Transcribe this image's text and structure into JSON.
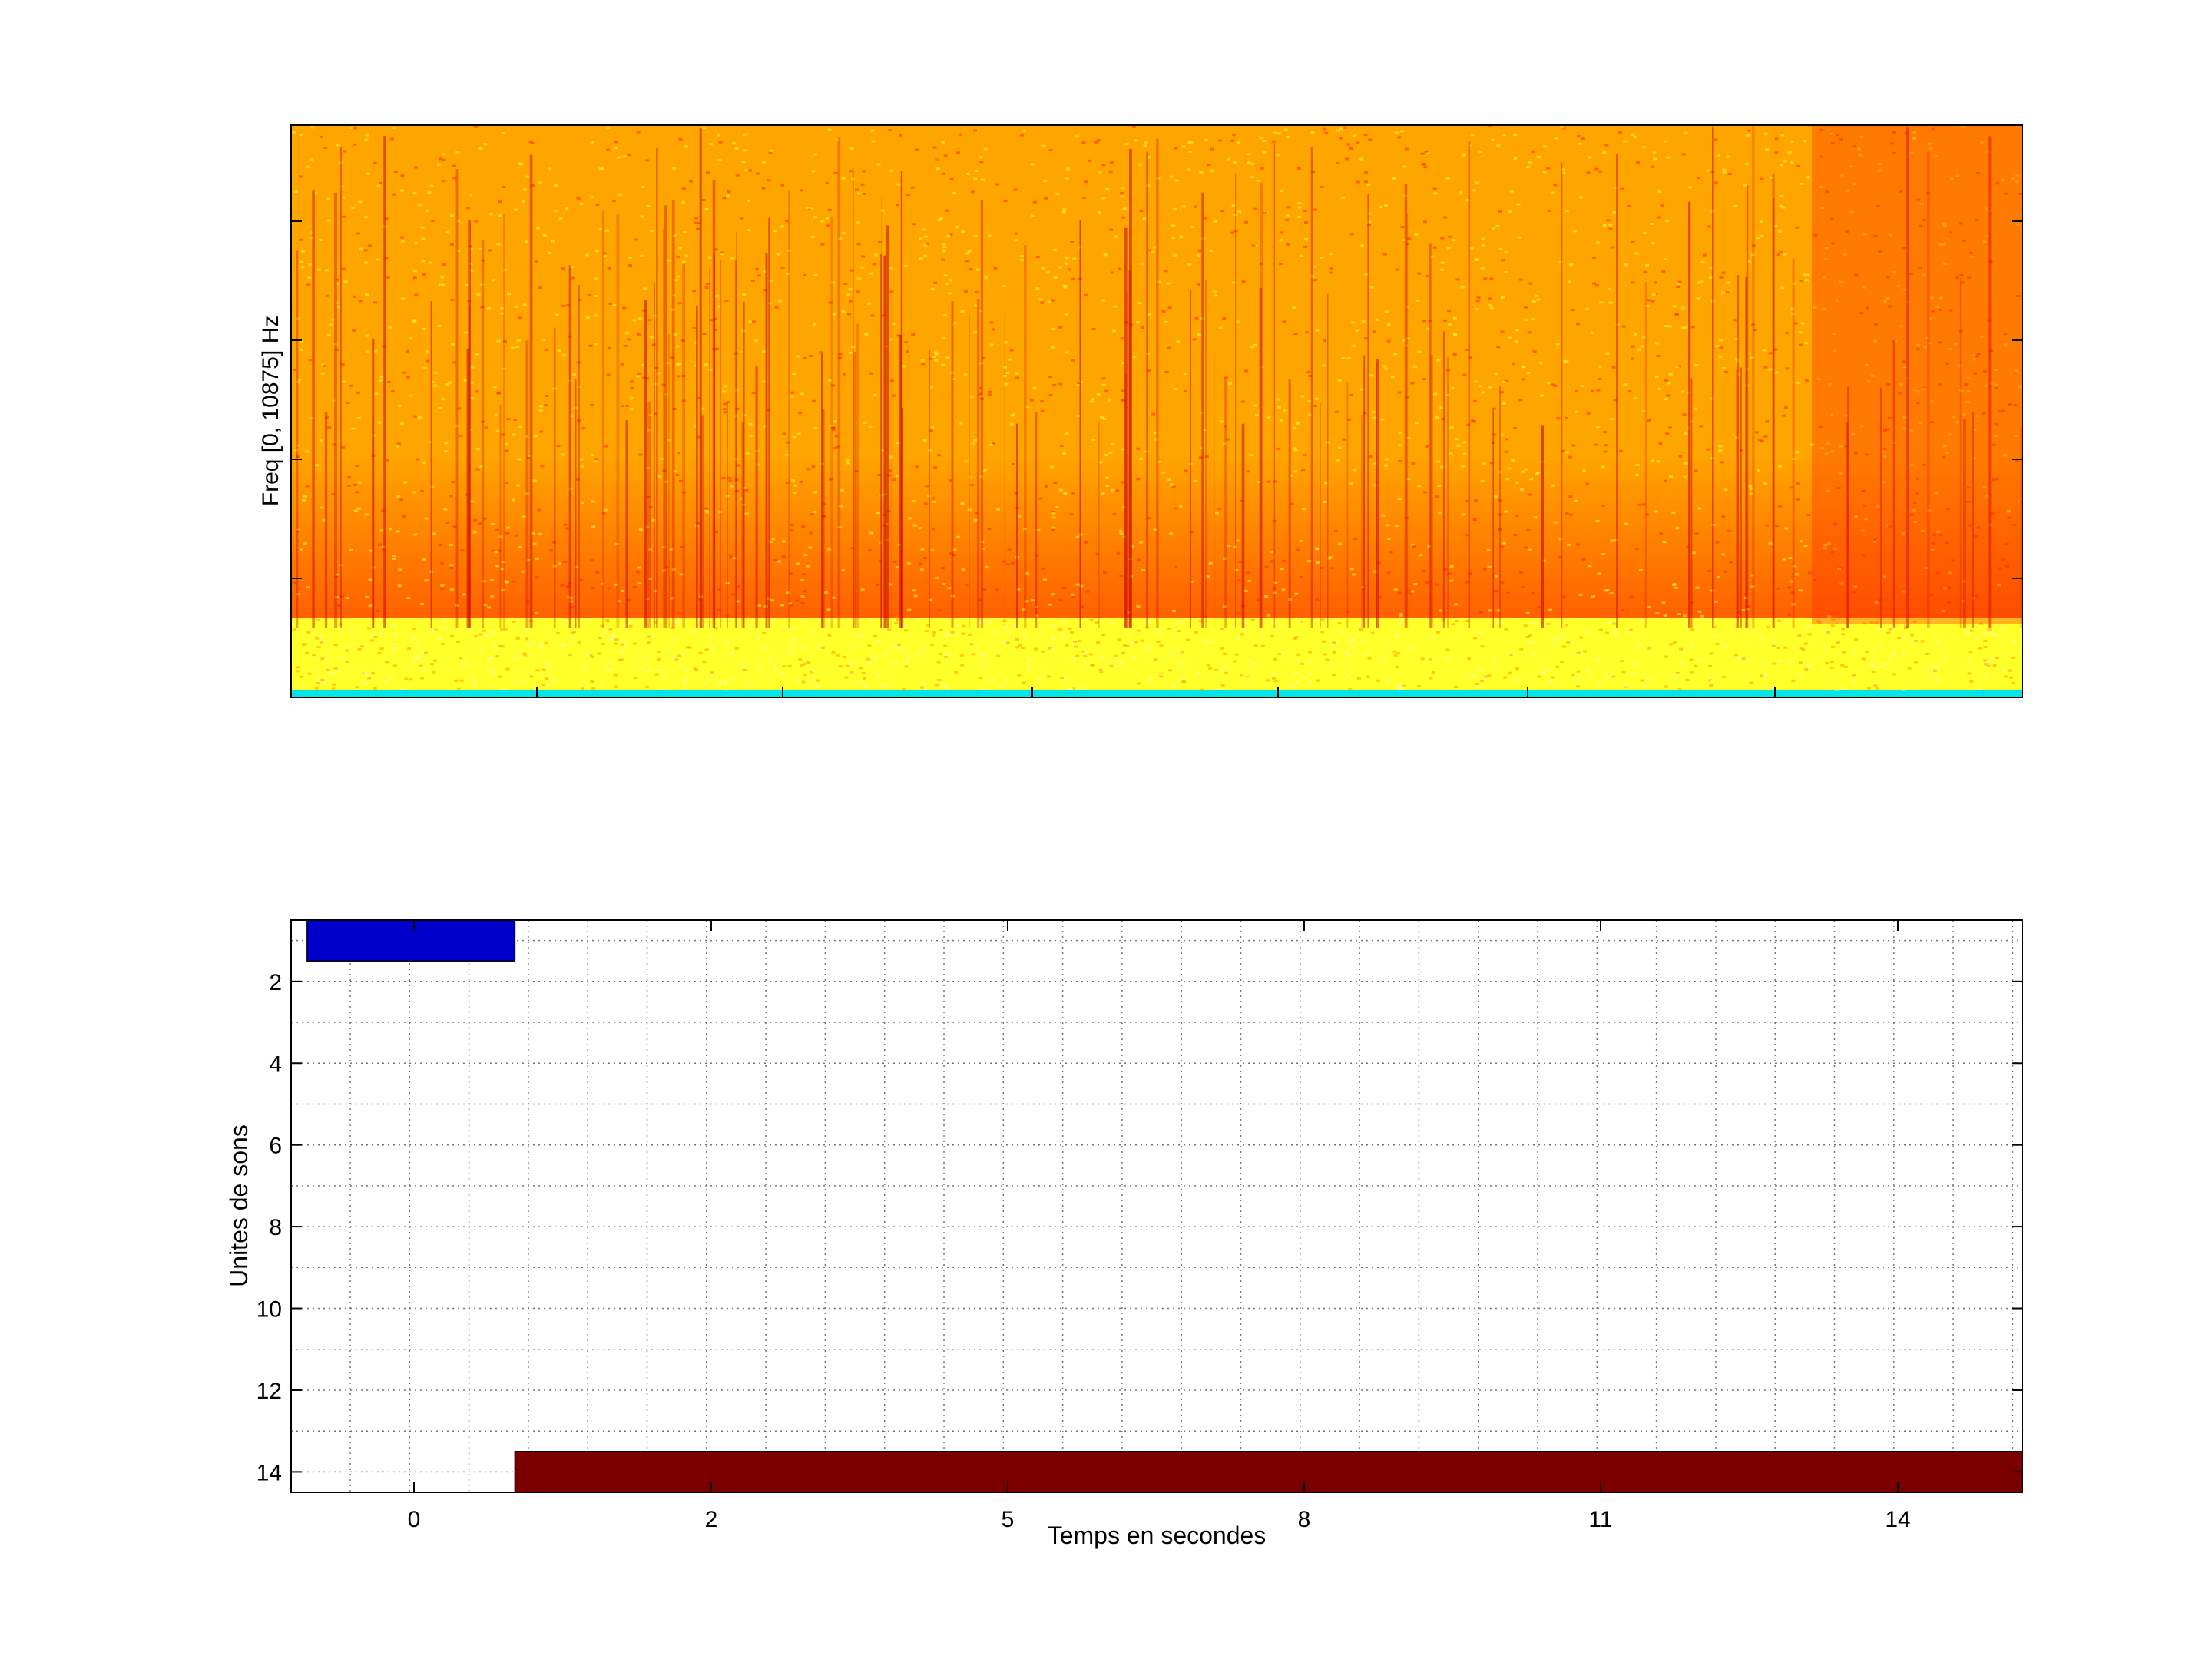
{
  "chart_data": [
    {
      "type": "heatmap",
      "ylabel": "Freq [0, 10875] Hz",
      "xlabel": "",
      "title": "",
      "colormap": [
        "#00e5e5",
        "#ffff2a",
        "#ffa500",
        "#ff2a00",
        "#c80000"
      ]
    },
    {
      "type": "bar",
      "orientation": "horizontal",
      "xlabel": "Temps en secondes",
      "ylabel": "Unites de sons",
      "title": "",
      "x_tick_labels": [
        "0",
        "2",
        "5",
        "8",
        "11",
        "14"
      ],
      "y_tick_labels": [
        "2",
        "4",
        "6",
        "8",
        "10",
        "12",
        "14"
      ],
      "ylim": [
        0.5,
        14.5
      ],
      "y_reversed": true,
      "grid": true,
      "segments": [
        {
          "unit": 1,
          "start": -0.9,
          "end": 0.85,
          "color": "#0000cc"
        },
        {
          "unit": 14,
          "start": 0.85,
          "end": 14.9,
          "color": "#7a0000"
        }
      ]
    }
  ]
}
